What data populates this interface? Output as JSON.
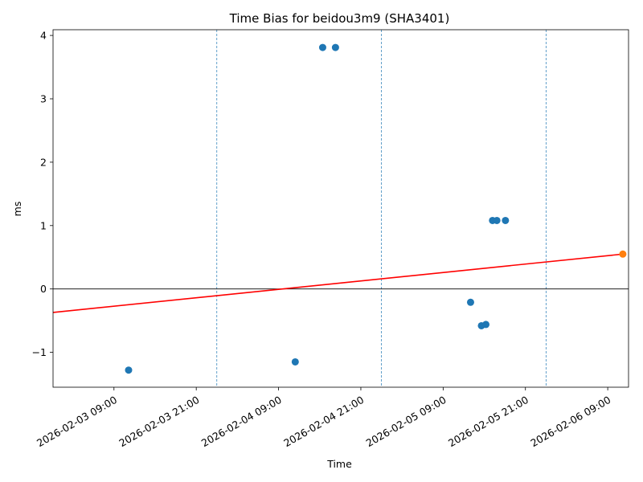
{
  "chart_data": {
    "type": "scatter",
    "title": "Time Bias for beidou3m9 (SHA3401)",
    "xlabel": "Time",
    "ylabel": "ms",
    "xlim": [
      "2026-02-03 00:07",
      "2026-02-06 12:02"
    ],
    "ylim": [
      -1.55,
      4.09
    ],
    "x_ticks": [
      {
        "t": "2026-02-03 09:00",
        "label": "2026-02-03 09:00"
      },
      {
        "t": "2026-02-03 21:00",
        "label": "2026-02-03 21:00"
      },
      {
        "t": "2026-02-04 09:00",
        "label": "2026-02-04 09:00"
      },
      {
        "t": "2026-02-04 21:00",
        "label": "2026-02-04 21:00"
      },
      {
        "t": "2026-02-05 09:00",
        "label": "2026-02-05 09:00"
      },
      {
        "t": "2026-02-05 21:00",
        "label": "2026-02-05 21:00"
      },
      {
        "t": "2026-02-06 09:00",
        "label": "2026-02-06 09:00"
      }
    ],
    "y_ticks": [
      {
        "v": -1,
        "label": "−1"
      },
      {
        "v": 0,
        "label": "0"
      },
      {
        "v": 1,
        "label": "1"
      },
      {
        "v": 2,
        "label": "2"
      },
      {
        "v": 3,
        "label": "3"
      },
      {
        "v": 4,
        "label": "4"
      }
    ],
    "day_boundaries": [
      "2026-02-03 00:00",
      "2026-02-04 00:00",
      "2026-02-05 00:00",
      "2026-02-06 00:00"
    ],
    "zero_line": 0,
    "series": [
      {
        "color": "#1f77b4",
        "points": [
          {
            "t": "2026-02-03 11:08",
            "v": -1.28
          },
          {
            "t": "2026-02-04 11:26",
            "v": -1.15
          },
          {
            "t": "2026-02-04 15:26",
            "v": 3.81
          },
          {
            "t": "2026-02-04 17:18",
            "v": 3.81
          },
          {
            "t": "2026-02-05 13:00",
            "v": -0.21
          },
          {
            "t": "2026-02-05 14:35",
            "v": -0.58
          },
          {
            "t": "2026-02-05 15:14",
            "v": -0.56
          },
          {
            "t": "2026-02-05 16:12",
            "v": 1.08
          },
          {
            "t": "2026-02-05 16:50",
            "v": 1.08
          },
          {
            "t": "2026-02-05 18:05",
            "v": 1.08
          }
        ]
      },
      {
        "color": "#ff7f0e",
        "points": [
          {
            "t": "2026-02-06 11:12",
            "v": 0.55
          }
        ]
      }
    ],
    "trend_line": {
      "color": "#ff0000",
      "start": {
        "t": "2026-02-03 00:00",
        "v": -0.37
      },
      "end": {
        "t": "2026-02-06 11:12",
        "v": 0.55
      }
    },
    "grid": false,
    "legend": false
  }
}
